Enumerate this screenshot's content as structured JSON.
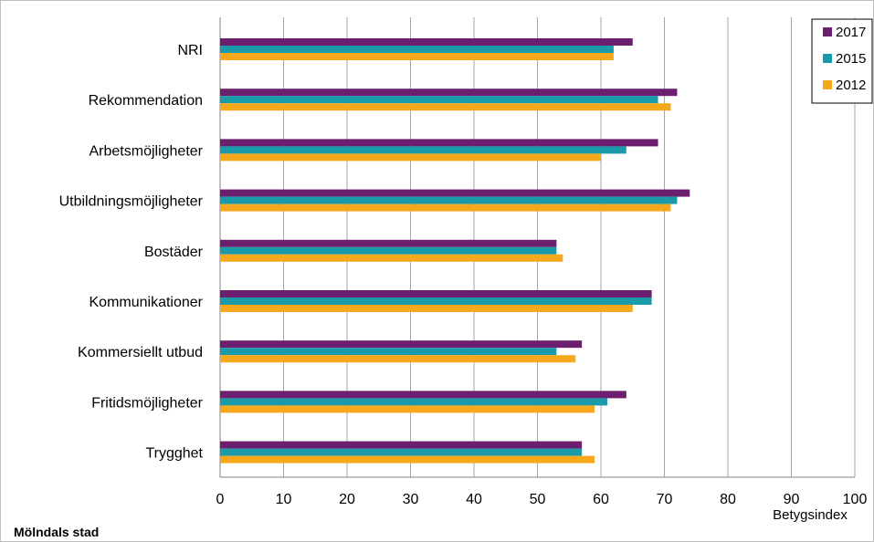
{
  "chart_data": {
    "type": "bar",
    "orientation": "horizontal",
    "categories": [
      "NRI",
      "Rekommendation",
      "Arbetsmöjligheter",
      "Utbildningsmöjligheter",
      "Bostäder",
      "Kommunikationer",
      "Kommersiellt utbud",
      "Fritidsmöjligheter",
      "Trygghet"
    ],
    "series": [
      {
        "name": "2017",
        "color": "#6b1f6e",
        "values": [
          65,
          72,
          69,
          74,
          53,
          68,
          57,
          64,
          57
        ]
      },
      {
        "name": "2015",
        "color": "#1b9aaa",
        "values": [
          62,
          69,
          64,
          72,
          53,
          68,
          53,
          61,
          57
        ]
      },
      {
        "name": "2012",
        "color": "#f5a81c",
        "values": [
          62,
          71,
          60,
          71,
          54,
          65,
          56,
          59,
          59
        ]
      }
    ],
    "xlim": [
      0,
      100
    ],
    "xticks": [
      0,
      10,
      20,
      30,
      40,
      50,
      60,
      70,
      80,
      90,
      100
    ],
    "xlabel": "Betygsindex",
    "grid": true,
    "legend_position": "top-right"
  },
  "footer": {
    "title": "Mölndals stad"
  }
}
